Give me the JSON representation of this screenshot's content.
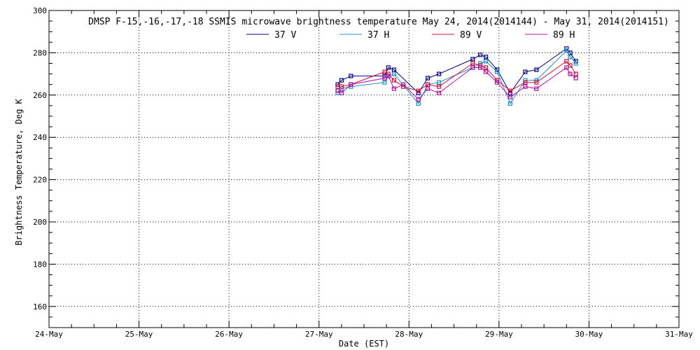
{
  "chart_data": {
    "type": "line",
    "title": "DMSP F-15,-16,-17,-18 SSMIS microwave brightness temperature May 24, 2014(2014144) - May 31, 2014(2014151)",
    "xlabel": "Date (EST)",
    "ylabel": "Brightness Temperature, Deg K",
    "xlim": [
      "2014-05-24T00:00",
      "2014-05-31T00:00"
    ],
    "ylim": [
      150,
      300
    ],
    "x_ticks": [
      "24-May",
      "25-May",
      "26-May",
      "27-May",
      "28-May",
      "29-May",
      "30-May",
      "31-May"
    ],
    "y_ticks": [
      160,
      180,
      200,
      220,
      240,
      260,
      280,
      300
    ],
    "grid": true,
    "legend_position": "top-center",
    "series": [
      {
        "name": "37 V",
        "color": "#00008b",
        "x": [
          "2014-05-27T05:00",
          "2014-05-27T06:00",
          "2014-05-27T08:30",
          "2014-05-27T17:30",
          "2014-05-27T18:30",
          "2014-05-27T20:00",
          "2014-05-28T02:30",
          "2014-05-28T05:00",
          "2014-05-28T08:00",
          "2014-05-28T17:00",
          "2014-05-28T19:00",
          "2014-05-28T20:30",
          "2014-05-28T23:30",
          "2014-05-29T03:00",
          "2014-05-29T07:00",
          "2014-05-29T10:00",
          "2014-05-29T18:00",
          "2014-05-29T19:00",
          "2014-05-29T20:30"
        ],
        "y": [
          265,
          267,
          269,
          269,
          273,
          272,
          261,
          268,
          270,
          277,
          279,
          278,
          272,
          261,
          271,
          272,
          282,
          280,
          276
        ]
      },
      {
        "name": "37 H",
        "color": "#1e90c8",
        "x": [
          "2014-05-27T05:00",
          "2014-05-27T06:00",
          "2014-05-27T08:30",
          "2014-05-27T17:30",
          "2014-05-27T18:30",
          "2014-05-27T20:00",
          "2014-05-28T02:30",
          "2014-05-28T05:00",
          "2014-05-28T08:00",
          "2014-05-28T17:00",
          "2014-05-28T19:00",
          "2014-05-28T20:30",
          "2014-05-28T23:30",
          "2014-05-29T03:00",
          "2014-05-29T07:00",
          "2014-05-29T10:00",
          "2014-05-29T18:00",
          "2014-05-29T19:00",
          "2014-05-29T20:30"
        ],
        "y": [
          261,
          263,
          264,
          266,
          269,
          270,
          256,
          265,
          266,
          273,
          275,
          276,
          271,
          256,
          267,
          267,
          281,
          278,
          275
        ]
      },
      {
        "name": "89 V",
        "color": "#d0103a",
        "x": [
          "2014-05-27T05:00",
          "2014-05-27T06:00",
          "2014-05-27T08:30",
          "2014-05-27T17:30",
          "2014-05-27T18:30",
          "2014-05-27T20:00",
          "2014-05-27T22:30",
          "2014-05-28T02:30",
          "2014-05-28T05:00",
          "2014-05-28T08:00",
          "2014-05-28T17:00",
          "2014-05-28T19:00",
          "2014-05-28T20:30",
          "2014-05-28T23:30",
          "2014-05-29T03:00",
          "2014-05-29T07:00",
          "2014-05-29T10:00",
          "2014-05-29T18:00",
          "2014-05-29T19:00",
          "2014-05-29T20:30"
        ],
        "y": [
          264,
          264,
          265,
          271,
          270,
          267,
          264,
          262,
          265,
          264,
          275,
          274,
          273,
          267,
          262,
          266,
          266,
          276,
          274,
          270
        ]
      },
      {
        "name": "89 H",
        "color": "#b010b0",
        "x": [
          "2014-05-27T05:00",
          "2014-05-27T06:00",
          "2014-05-27T08:30",
          "2014-05-27T17:30",
          "2014-05-27T18:30",
          "2014-05-27T20:00",
          "2014-05-27T22:30",
          "2014-05-28T02:30",
          "2014-05-28T05:00",
          "2014-05-28T08:00",
          "2014-05-28T17:00",
          "2014-05-28T19:00",
          "2014-05-28T20:30",
          "2014-05-28T23:30",
          "2014-05-29T03:00",
          "2014-05-29T07:00",
          "2014-05-29T10:00",
          "2014-05-29T18:00",
          "2014-05-29T19:00",
          "2014-05-29T20:30"
        ],
        "y": [
          262,
          261,
          265,
          268,
          269,
          263,
          265,
          258,
          263,
          261,
          273,
          273,
          271,
          266,
          259,
          264,
          263,
          273,
          270,
          268
        ]
      }
    ]
  }
}
